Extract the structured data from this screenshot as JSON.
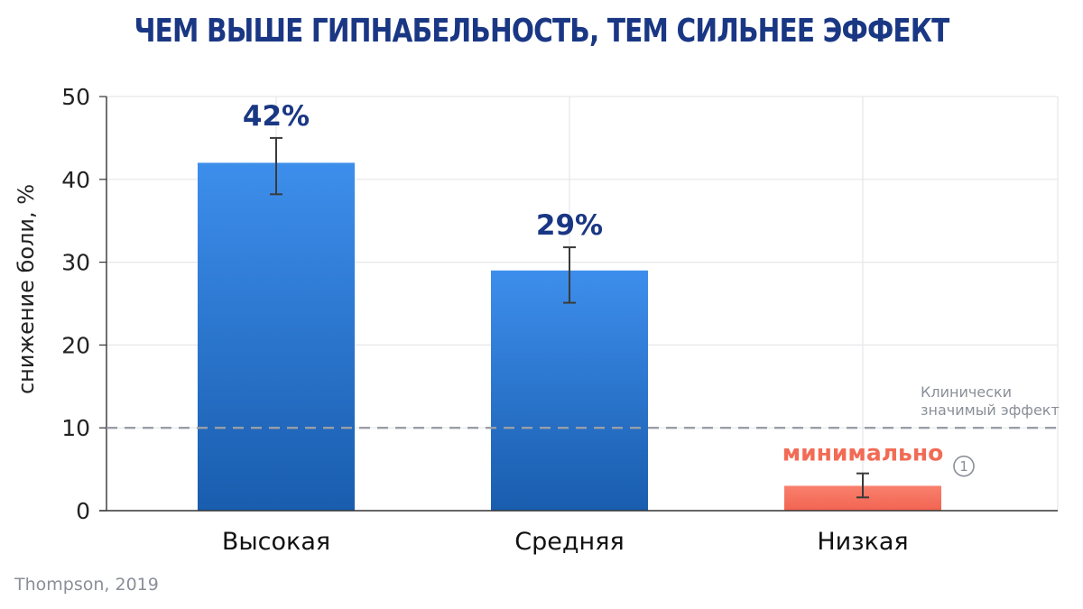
{
  "title": "ЧЕМ ВЫШЕ ГИПНАБЕЛЬНОСТЬ, ТЕМ СИЛЬНЕЕ ЭФФЕКТ",
  "source": "Thompson, 2019",
  "chart_data": {
    "type": "bar",
    "categories": [
      "Высокая",
      "Средняя",
      "Низкая"
    ],
    "values": [
      42,
      29,
      3
    ],
    "error_low": [
      38.2,
      25.1,
      1.6
    ],
    "error_high": [
      45,
      31.8,
      4.5
    ],
    "data_labels": [
      "42%",
      "29%",
      "минимально"
    ],
    "bar_colors": [
      "#2f7fe0",
      "#2f7fe0",
      "#f26b55"
    ],
    "label_colors": [
      "#1a3784",
      "#1a3784",
      "#f26b55"
    ],
    "xlabel": "",
    "ylabel": "снижение боли, %",
    "ylim": [
      0,
      50
    ],
    "yticks": [
      0,
      10,
      20,
      30,
      40,
      50
    ],
    "grid": true,
    "threshold": {
      "value": 10,
      "label_lines": [
        "Клинически",
        "значимый эффект"
      ]
    },
    "footnote_marker": "1"
  },
  "colors": {
    "title": "#1a3784",
    "bar_top": "#3c8eea",
    "bar_bottom": "#1a5fb5",
    "low_bar": "#f77a66",
    "threshold_line": "#9a9ea6",
    "axis": "#333333"
  }
}
